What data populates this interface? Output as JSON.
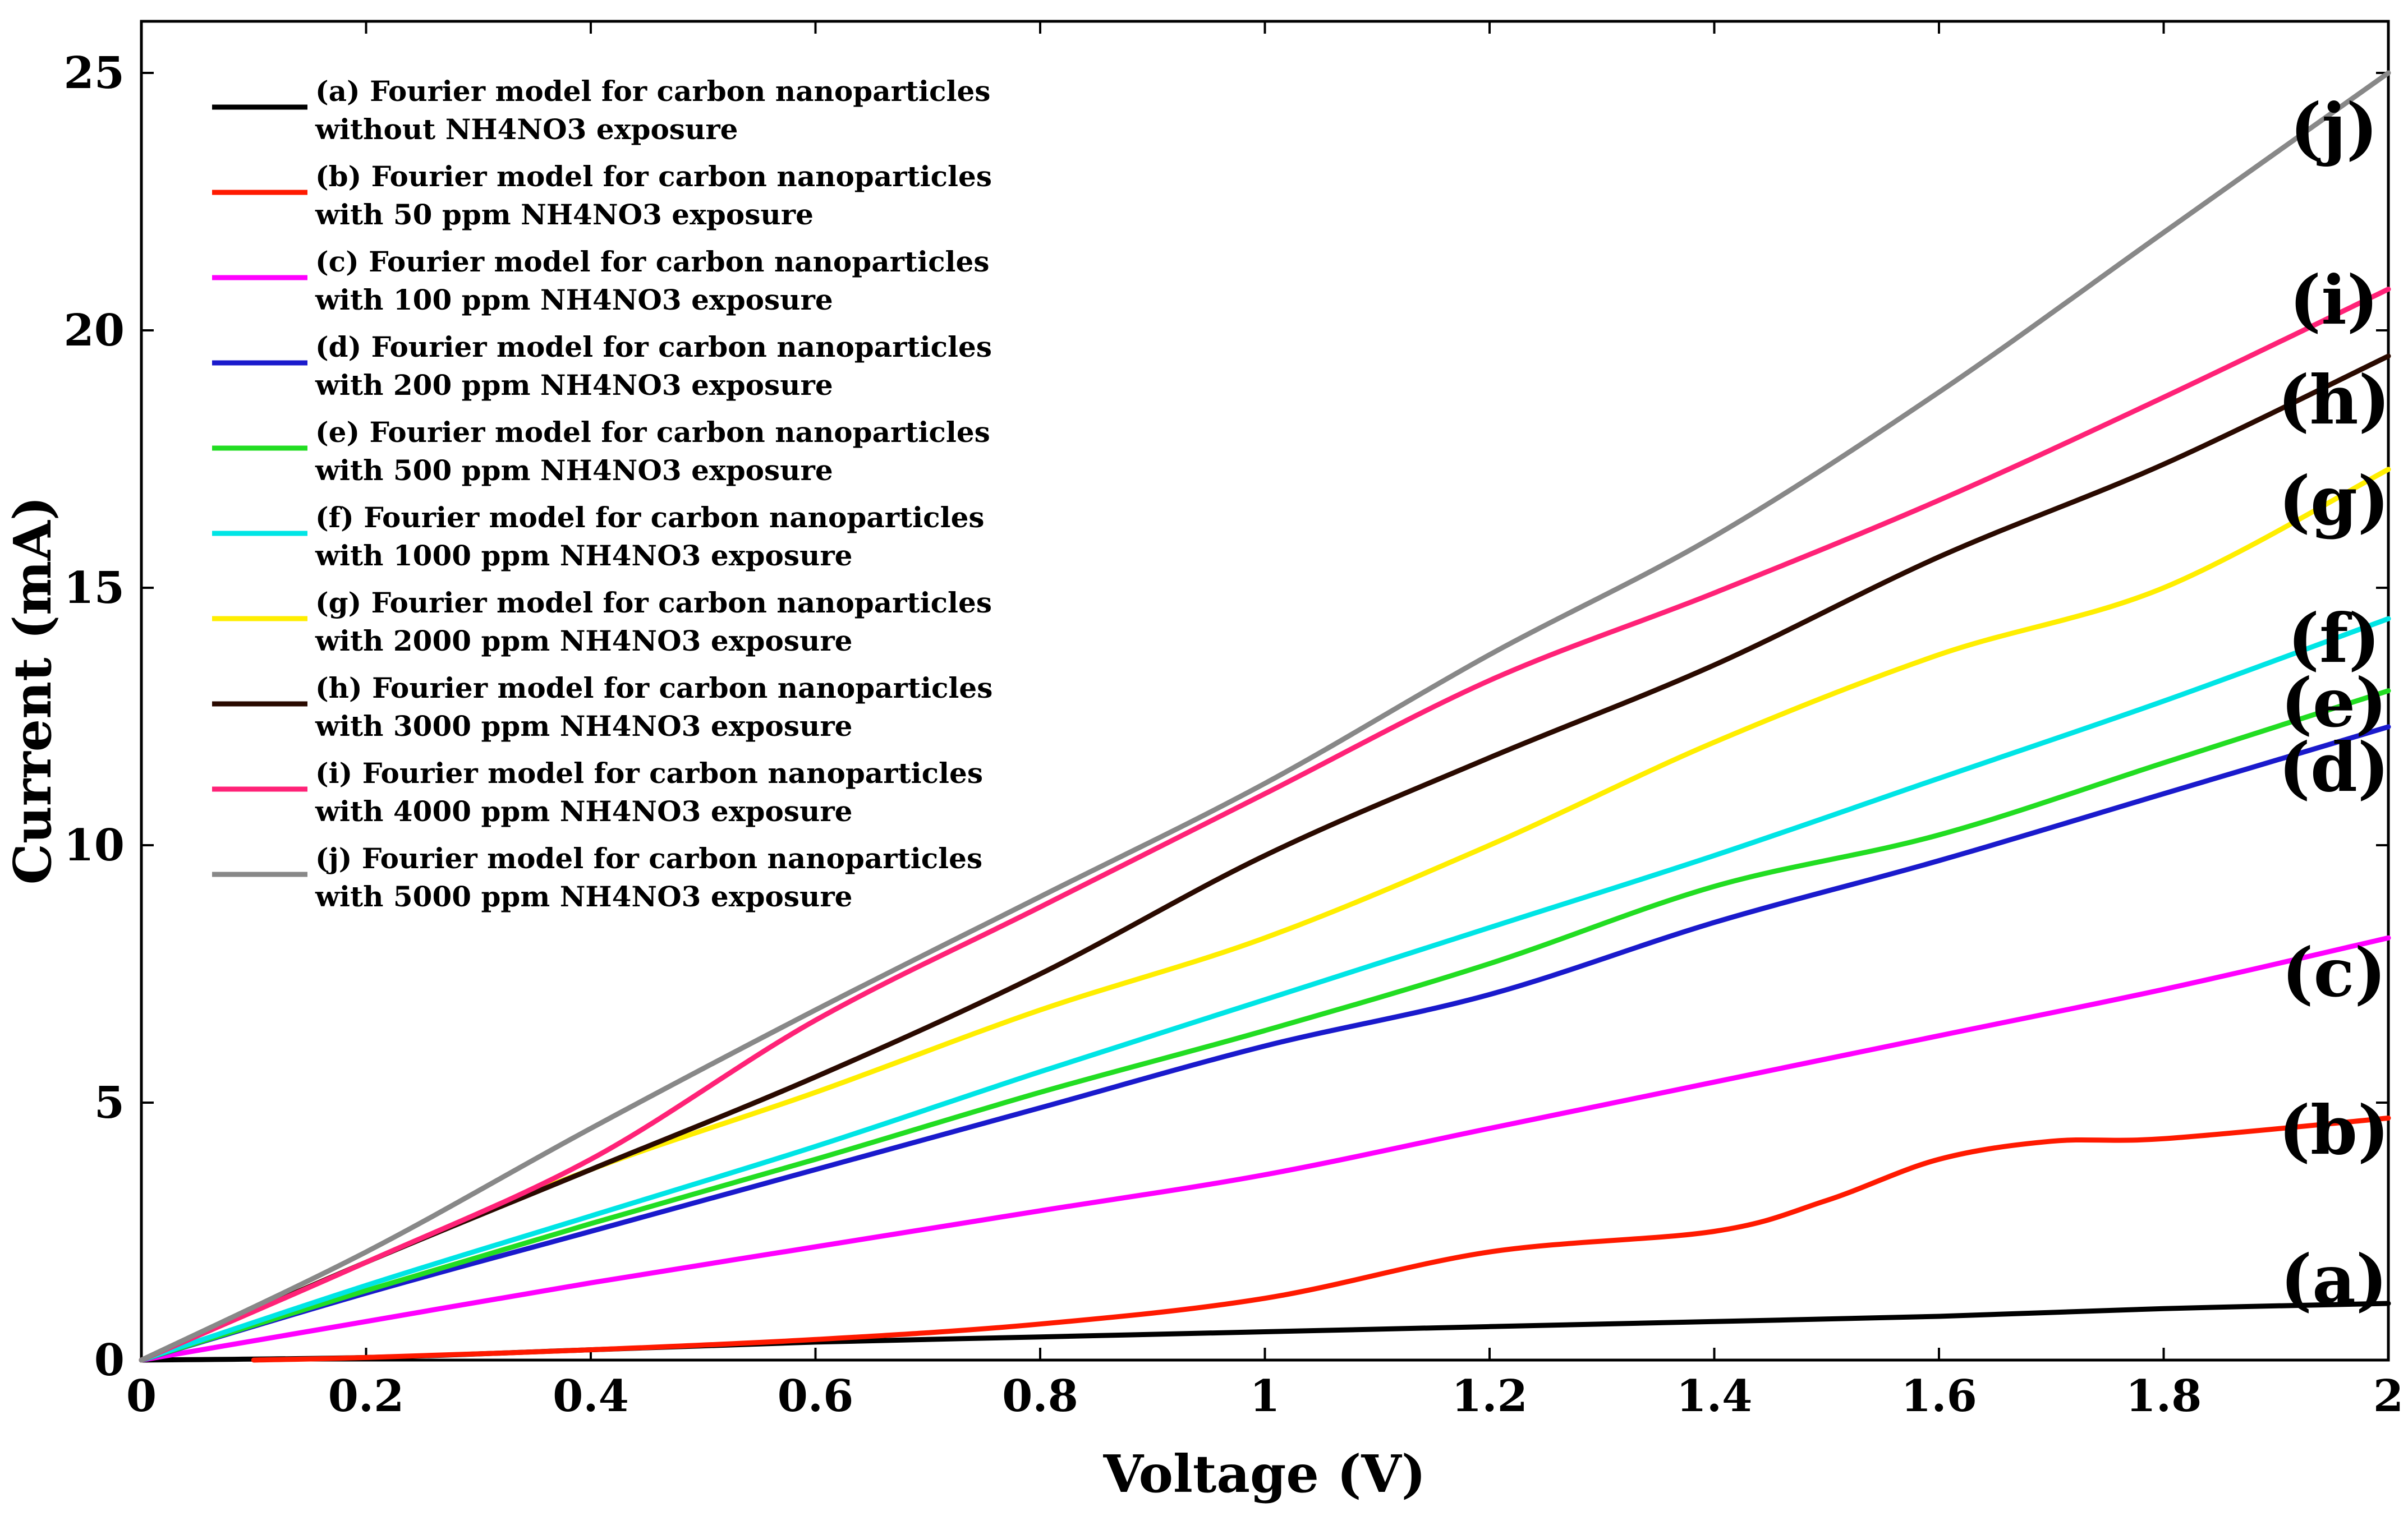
{
  "chart_data": {
    "type": "line",
    "title": "",
    "xlabel": "Voltage (V)",
    "ylabel": "Current (mA)",
    "xlim": [
      0,
      2
    ],
    "ylim": [
      0,
      26
    ],
    "grid": false,
    "legend_position": "top-left",
    "x_ticks": [
      0,
      0.2,
      0.4,
      0.6,
      0.8,
      1,
      1.2,
      1.4,
      1.6,
      1.8,
      2
    ],
    "x_tick_labels": [
      "0",
      "0.2",
      "0.4",
      "0.6",
      "0.8",
      "1",
      "1.2",
      "1.4",
      "1.6",
      "1.8",
      "2"
    ],
    "y_ticks": [
      0,
      5,
      10,
      15,
      20,
      25
    ],
    "y_tick_labels": [
      "0",
      "5",
      "10",
      "15",
      "20",
      "25"
    ],
    "x": [
      0,
      0.2,
      0.4,
      0.6,
      0.8,
      1.0,
      1.2,
      1.4,
      1.6,
      1.8,
      2.0
    ],
    "series": [
      {
        "name": "(a) Fourier model for carbon nanoparticles without NH4NO3 exposure",
        "legend_line1": "(a) Fourier model for carbon nanoparticles",
        "legend_line2": "without NH4NO3 exposure",
        "label": "(a)",
        "color": "#000000",
        "values": [
          0,
          0.05,
          0.2,
          0.35,
          0.45,
          0.55,
          0.65,
          0.75,
          0.85,
          1.0,
          1.1
        ]
      },
      {
        "name": "(b) Fourier model for carbon nanoparticles with 50 ppm NH4NO3 exposure",
        "legend_line1": "(b) Fourier model for carbon nanoparticles",
        "legend_line2": "with 50 ppm NH4NO3 exposure",
        "label": "(b)",
        "color": "#ff1a00",
        "x": [
          0.1,
          0.2,
          0.4,
          0.6,
          0.8,
          1.0,
          1.2,
          1.4,
          1.5,
          1.6,
          1.7,
          1.8,
          2.0
        ],
        "values": [
          0,
          0.05,
          0.2,
          0.4,
          0.7,
          1.2,
          2.1,
          2.5,
          3.1,
          3.9,
          4.25,
          4.3,
          4.7
        ]
      },
      {
        "name": "(c) Fourier model for carbon nanoparticles with 100 ppm NH4NO3 exposure",
        "legend_line1": "(c) Fourier model for carbon nanoparticles",
        "legend_line2": "with 100 ppm NH4NO3 exposure",
        "label": "(c)",
        "color": "#ff00ff",
        "values": [
          0,
          0.75,
          1.5,
          2.2,
          2.9,
          3.6,
          4.5,
          5.4,
          6.3,
          7.2,
          8.2
        ]
      },
      {
        "name": "(d) Fourier model for carbon nanoparticles with 200 ppm NH4NO3 exposure",
        "legend_line1": "(d) Fourier model for carbon nanoparticles",
        "legend_line2": "with 200 ppm NH4NO3 exposure",
        "label": "(d)",
        "color": "#1a1acc",
        "values": [
          0,
          1.3,
          2.5,
          3.7,
          4.9,
          6.1,
          7.1,
          8.5,
          9.7,
          11.0,
          12.3
        ]
      },
      {
        "name": "(e) Fourier model for carbon nanoparticles with 500 ppm NH4NO3 exposure",
        "legend_line1": "(e) Fourier model for carbon nanoparticles",
        "legend_line2": "with 500 ppm NH4NO3 exposure",
        "label": "(e)",
        "color": "#22dd22",
        "values": [
          0,
          1.35,
          2.65,
          3.9,
          5.2,
          6.4,
          7.7,
          9.2,
          10.2,
          11.6,
          13.0
        ]
      },
      {
        "name": "(f) Fourier model for carbon nanoparticles with 1000 ppm NH4NO3 exposure",
        "legend_line1": "(f) Fourier model for carbon nanoparticles",
        "legend_line2": "with 1000 ppm NH4NO3 exposure",
        "label": "(f)",
        "color": "#00e5e5",
        "values": [
          0,
          1.45,
          2.8,
          4.15,
          5.6,
          7.0,
          8.4,
          9.8,
          11.3,
          12.8,
          14.4
        ]
      },
      {
        "name": "(g) Fourier model for carbon nanoparticles with 2000 ppm NH4NO3 exposure",
        "legend_line1": "(g) Fourier model for carbon nanoparticles",
        "legend_line2": "with 2000 ppm NH4NO3 exposure",
        "label": "(g)",
        "color": "#ffee00",
        "values": [
          0,
          1.9,
          3.7,
          5.2,
          6.8,
          8.2,
          10.0,
          12.0,
          13.7,
          15.0,
          17.3
        ]
      },
      {
        "name": "(h) Fourier model for carbon nanoparticles with 3000 ppm NH4NO3 exposure",
        "legend_line1": "(h) Fourier model for carbon nanoparticles",
        "legend_line2": "with 3000 ppm NH4NO3 exposure",
        "label": "(h)",
        "color": "#2a0a00",
        "values": [
          0,
          1.9,
          3.7,
          5.5,
          7.5,
          9.8,
          11.7,
          13.5,
          15.6,
          17.4,
          19.5
        ]
      },
      {
        "name": "(i) Fourier model for carbon nanoparticles with 4000 ppm NH4NO3 exposure",
        "legend_line1": "(i) Fourier model for carbon nanoparticles",
        "legend_line2": "with 4000 ppm NH4NO3 exposure",
        "label": "(i)",
        "color": "#ff2277",
        "values": [
          0,
          1.9,
          3.9,
          6.6,
          8.8,
          11.0,
          13.2,
          14.9,
          16.7,
          18.7,
          20.8
        ]
      },
      {
        "name": "(j) Fourier model for carbon nanoparticles with 5000 ppm NH4NO3 exposure",
        "legend_line1": "(j) Fourier model for carbon nanoparticles",
        "legend_line2": "with 5000 ppm NH4NO3 exposure",
        "label": "(j)",
        "color": "#888888",
        "values": [
          0,
          2.1,
          4.5,
          6.8,
          9.0,
          11.2,
          13.7,
          16.0,
          18.8,
          21.9,
          25.0
        ]
      }
    ]
  }
}
